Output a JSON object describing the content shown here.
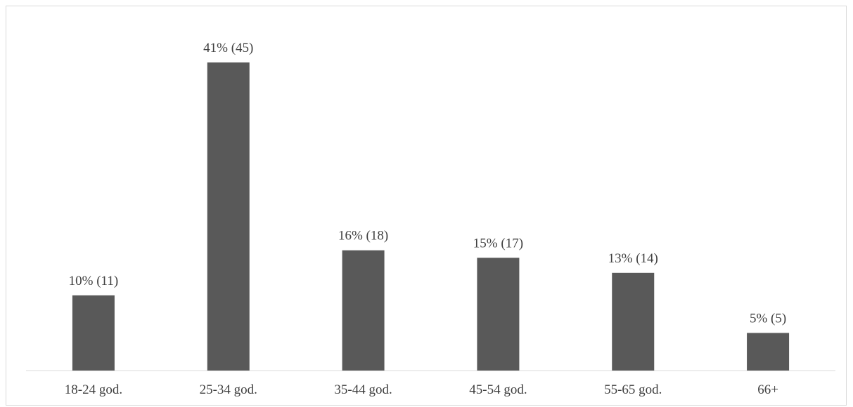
{
  "chart_data": {
    "type": "bar",
    "categories": [
      "18-24 god.",
      "25-34 god.",
      "35-44 god.",
      "45-54 god.",
      "55-65 god.",
      "66+"
    ],
    "values": [
      10,
      41,
      16,
      15,
      13,
      5
    ],
    "data_labels": [
      "10% (11)",
      "41% (45)",
      "16% (18)",
      "15% (17)",
      "13% (14)",
      "5% (5)"
    ],
    "title": "",
    "xlabel": "",
    "ylabel": "",
    "ylim": [
      0,
      41
    ],
    "grid": false,
    "legend": "none",
    "colors": {
      "bar": "#595959",
      "axis": "#d9d9d9",
      "text": "#404040"
    }
  }
}
